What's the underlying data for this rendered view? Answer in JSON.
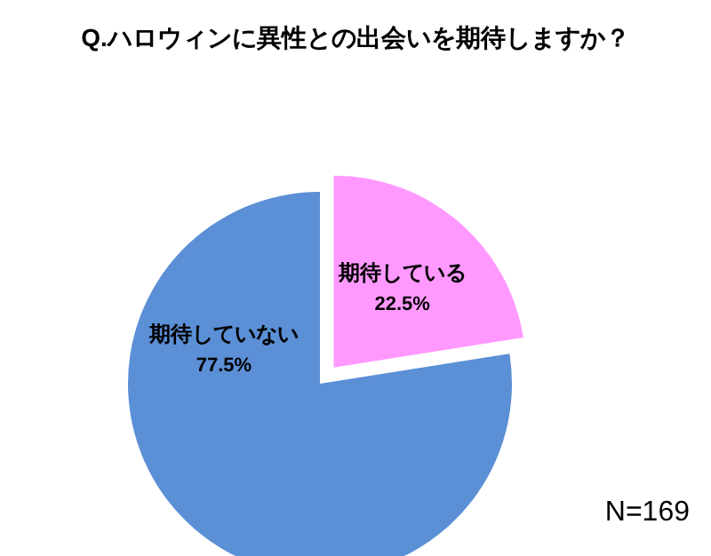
{
  "chart_data": {
    "type": "pie",
    "title": "Q.ハロウィンに異性との出会いを期待しますか？",
    "categories": [
      "期待している",
      "期待していない"
    ],
    "values": [
      22.5,
      77.5
    ],
    "colors": [
      "#ff99ff",
      "#5b8fd6"
    ],
    "data_labels": true,
    "value_labels": [
      "22.5%",
      "77.5%"
    ],
    "annotations": [
      "N=169"
    ]
  }
}
